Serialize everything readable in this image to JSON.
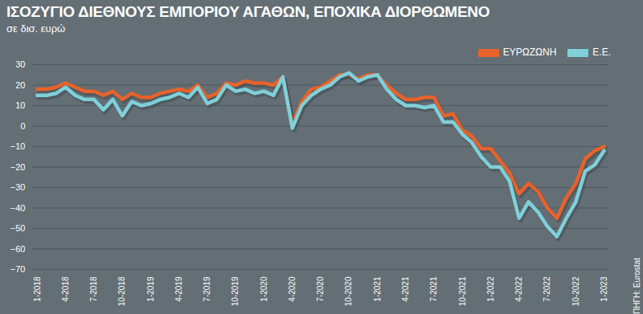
{
  "chart_data": {
    "type": "line",
    "title": "ΙΣΟΖΥΓΙΟ ΔΙΕΘΝΟΥΣ ΕΜΠΟΡΙΟΥ ΑΓΑΘΩΝ, ΕΠΟΧΙΚΑ ΔΙΟΡΘΩΜΕΝΟ",
    "subtitle": "σε δισ. ευρώ",
    "source": "ΠΗΓΗ: Eurostat",
    "categories": [
      "1-2018",
      null,
      null,
      "4-2018",
      null,
      null,
      "7-2018",
      null,
      null,
      "10-2018",
      null,
      null,
      "1-2019",
      null,
      null,
      "4-2019",
      null,
      null,
      "7-2019",
      null,
      null,
      "10-2019",
      null,
      null,
      "1-2020",
      null,
      null,
      "4-2020",
      null,
      null,
      "7-2020",
      null,
      null,
      "10-2020",
      null,
      null,
      "1-2021",
      null,
      null,
      "4-2021",
      null,
      null,
      "7-2021",
      null,
      null,
      "10-2021",
      null,
      null,
      "1-2022",
      null,
      null,
      "4-2022",
      null,
      null,
      "7-2022",
      null,
      null,
      "10-2022",
      null,
      null,
      "1-2023"
    ],
    "series": [
      {
        "name": "ΕΥΡΩΖΩΝΗ",
        "color": "#e8622a",
        "values": [
          18,
          18,
          19,
          21,
          19,
          17,
          17,
          15,
          17,
          13,
          16,
          14,
          14,
          16,
          17,
          18,
          17,
          20,
          14,
          16,
          21,
          20,
          22,
          21,
          21,
          20,
          24,
          1,
          12,
          18,
          19,
          22,
          25,
          25,
          23,
          25,
          25,
          20,
          16,
          13,
          13,
          14,
          14,
          5,
          6,
          -2,
          -5,
          -11,
          -11,
          -17,
          -23,
          -33,
          -28,
          -32,
          -40,
          -45,
          -35,
          -28,
          -16,
          -12,
          -10
        ]
      },
      {
        "name": "Ε.Ε.",
        "color": "#7fd0d9",
        "values": [
          15,
          15,
          16,
          19,
          15,
          13,
          13,
          8,
          13,
          5,
          12,
          10,
          11,
          13,
          14,
          16,
          14,
          19,
          11,
          13,
          20,
          17,
          18,
          16,
          17,
          15,
          24,
          -1,
          10,
          15,
          18,
          20,
          24,
          26,
          22,
          24,
          25,
          18,
          13,
          10,
          10,
          9,
          10,
          2,
          2,
          -4,
          -8,
          -15,
          -20,
          -20,
          -27,
          -45,
          -37,
          -42,
          -49,
          -54,
          -45,
          -37,
          -22,
          -19,
          -12
        ]
      }
    ],
    "ylim": [
      -70,
      30
    ],
    "yticks": [
      -70,
      -60,
      -50,
      -40,
      -30,
      -20,
      -10,
      0,
      10,
      20,
      30
    ],
    "grid": true,
    "legend": "top-right"
  }
}
